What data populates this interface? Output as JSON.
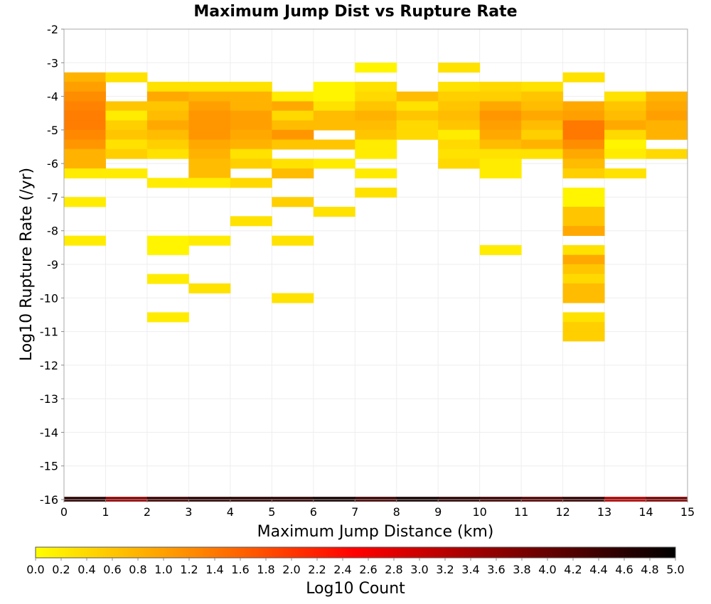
{
  "chart_data": {
    "type": "heatmap",
    "title": "Maximum Jump Dist vs Rupture Rate",
    "xlabel": "Maximum Jump Distance (km)",
    "ylabel": "Log10 Rupture Rate (/yr)",
    "xlim": [
      0,
      15
    ],
    "ylim": [
      -16,
      -2
    ],
    "x_ticks": [
      "0",
      "1",
      "2",
      "3",
      "4",
      "5",
      "6",
      "7",
      "8",
      "9",
      "10",
      "11",
      "12",
      "13",
      "14",
      "15"
    ],
    "y_ticks": [
      "-2",
      "-3",
      "-4",
      "-5",
      "-6",
      "-7",
      "-8",
      "-9",
      "-10",
      "-11",
      "-12",
      "-13",
      "-14",
      "-15",
      "-16"
    ],
    "bin_width_x": 1,
    "bin_height_y": 0.286,
    "colorbar": {
      "label": "Log10 Count",
      "min": 0.0,
      "max": 5.0,
      "ticks": [
        "0.0",
        "0.2",
        "0.4",
        "0.6",
        "0.8",
        "1.0",
        "1.2",
        "1.4",
        "1.6",
        "1.8",
        "2.0",
        "2.2",
        "2.4",
        "2.6",
        "2.8",
        "3.0",
        "3.2",
        "3.4",
        "3.6",
        "3.8",
        "4.0",
        "4.2",
        "4.4",
        "4.6",
        "4.8",
        "5.0"
      ],
      "stops": [
        "#ffff00",
        "#ff8800",
        "#ff0000",
        "#800000",
        "#000000"
      ]
    },
    "columns": [
      {
        "x": 0,
        "bins": [
          {
            "y": -3.43,
            "v": 0.8
          },
          {
            "y": -3.71,
            "v": 1.0
          },
          {
            "y": -4.0,
            "v": 1.2
          },
          {
            "y": -4.29,
            "v": 1.3
          },
          {
            "y": -4.57,
            "v": 1.35
          },
          {
            "y": -4.86,
            "v": 1.35
          },
          {
            "y": -5.14,
            "v": 1.25
          },
          {
            "y": -5.43,
            "v": 1.1
          },
          {
            "y": -5.71,
            "v": 0.8
          },
          {
            "y": -6.0,
            "v": 0.8
          },
          {
            "y": -6.29,
            "v": 0.2
          },
          {
            "y": -7.14,
            "v": 0.2
          },
          {
            "y": -8.29,
            "v": 0.2
          }
        ]
      },
      {
        "x": 1,
        "bins": [
          {
            "y": -3.43,
            "v": 0.3
          },
          {
            "y": -4.29,
            "v": 0.6
          },
          {
            "y": -4.57,
            "v": 0.2
          },
          {
            "y": -4.86,
            "v": 0.5
          },
          {
            "y": -5.14,
            "v": 0.6
          },
          {
            "y": -5.43,
            "v": 0.3
          },
          {
            "y": -5.71,
            "v": 0.5
          },
          {
            "y": -6.29,
            "v": 0.2
          }
        ]
      },
      {
        "x": 2,
        "bins": [
          {
            "y": -3.71,
            "v": 0.3
          },
          {
            "y": -4.0,
            "v": 0.9
          },
          {
            "y": -4.29,
            "v": 0.6
          },
          {
            "y": -4.57,
            "v": 0.7
          },
          {
            "y": -4.86,
            "v": 0.9
          },
          {
            "y": -5.14,
            "v": 0.7
          },
          {
            "y": -5.43,
            "v": 0.5
          },
          {
            "y": -5.71,
            "v": 0.3
          },
          {
            "y": -6.57,
            "v": 0.2
          },
          {
            "y": -8.29,
            "v": 0.1
          },
          {
            "y": -8.57,
            "v": 0.1
          },
          {
            "y": -9.43,
            "v": 0.2
          },
          {
            "y": -10.57,
            "v": 0.2
          }
        ]
      },
      {
        "x": 3,
        "bins": [
          {
            "y": -3.71,
            "v": 0.3
          },
          {
            "y": -4.0,
            "v": 0.8
          },
          {
            "y": -4.29,
            "v": 1.0
          },
          {
            "y": -4.57,
            "v": 1.1
          },
          {
            "y": -4.86,
            "v": 1.1
          },
          {
            "y": -5.14,
            "v": 1.1
          },
          {
            "y": -5.43,
            "v": 0.9
          },
          {
            "y": -5.71,
            "v": 0.8
          },
          {
            "y": -6.0,
            "v": 0.7
          },
          {
            "y": -6.29,
            "v": 0.7
          },
          {
            "y": -6.57,
            "v": 0.2
          },
          {
            "y": -8.29,
            "v": 0.2
          },
          {
            "y": -9.71,
            "v": 0.3
          }
        ]
      },
      {
        "x": 4,
        "bins": [
          {
            "y": -3.71,
            "v": 0.3
          },
          {
            "y": -4.0,
            "v": 0.8
          },
          {
            "y": -4.29,
            "v": 0.8
          },
          {
            "y": -4.57,
            "v": 1.0
          },
          {
            "y": -4.86,
            "v": 1.0
          },
          {
            "y": -5.14,
            "v": 0.9
          },
          {
            "y": -5.43,
            "v": 0.8
          },
          {
            "y": -5.71,
            "v": 0.3
          },
          {
            "y": -6.0,
            "v": 0.5
          },
          {
            "y": -6.57,
            "v": 0.4
          },
          {
            "y": -7.71,
            "v": 0.3
          }
        ]
      },
      {
        "x": 5,
        "bins": [
          {
            "y": -4.0,
            "v": 0.2
          },
          {
            "y": -4.29,
            "v": 0.9
          },
          {
            "y": -4.57,
            "v": 0.4
          },
          {
            "y": -4.86,
            "v": 0.7
          },
          {
            "y": -5.14,
            "v": 1.1
          },
          {
            "y": -5.43,
            "v": 0.6
          },
          {
            "y": -6.0,
            "v": 0.3
          },
          {
            "y": -6.29,
            "v": 0.7
          },
          {
            "y": -7.14,
            "v": 0.5
          },
          {
            "y": -8.29,
            "v": 0.3
          },
          {
            "y": -10.0,
            "v": 0.3
          }
        ]
      },
      {
        "x": 6,
        "bins": [
          {
            "y": -3.71,
            "v": 0.1
          },
          {
            "y": -4.0,
            "v": 0.1
          },
          {
            "y": -4.29,
            "v": 0.3
          },
          {
            "y": -4.57,
            "v": 0.7
          },
          {
            "y": -4.86,
            "v": 0.7
          },
          {
            "y": -5.43,
            "v": 0.6
          },
          {
            "y": -6.0,
            "v": 0.2
          },
          {
            "y": -7.43,
            "v": 0.3
          }
        ]
      },
      {
        "x": 7,
        "bins": [
          {
            "y": -3.14,
            "v": 0.1
          },
          {
            "y": -3.71,
            "v": 0.3
          },
          {
            "y": -4.0,
            "v": 0.4
          },
          {
            "y": -4.29,
            "v": 0.6
          },
          {
            "y": -4.57,
            "v": 0.8
          },
          {
            "y": -4.86,
            "v": 0.7
          },
          {
            "y": -5.14,
            "v": 0.6
          },
          {
            "y": -5.43,
            "v": 0.2
          },
          {
            "y": -5.71,
            "v": 0.2
          },
          {
            "y": -6.29,
            "v": 0.2
          },
          {
            "y": -6.86,
            "v": 0.3
          }
        ]
      },
      {
        "x": 8,
        "bins": [
          {
            "y": -4.0,
            "v": 0.7
          },
          {
            "y": -4.29,
            "v": 0.3
          },
          {
            "y": -4.57,
            "v": 0.6
          },
          {
            "y": -4.86,
            "v": 0.4
          },
          {
            "y": -5.14,
            "v": 0.4
          }
        ]
      },
      {
        "x": 9,
        "bins": [
          {
            "y": -3.14,
            "v": 0.3
          },
          {
            "y": -3.71,
            "v": 0.3
          },
          {
            "y": -4.0,
            "v": 0.5
          },
          {
            "y": -4.29,
            "v": 0.6
          },
          {
            "y": -4.57,
            "v": 0.7
          },
          {
            "y": -4.86,
            "v": 0.6
          },
          {
            "y": -5.14,
            "v": 0.2
          },
          {
            "y": -5.43,
            "v": 0.4
          },
          {
            "y": -5.71,
            "v": 0.3
          },
          {
            "y": -6.0,
            "v": 0.4
          }
        ]
      },
      {
        "x": 10,
        "bins": [
          {
            "y": -3.71,
            "v": 0.4
          },
          {
            "y": -4.0,
            "v": 0.5
          },
          {
            "y": -4.29,
            "v": 0.9
          },
          {
            "y": -4.57,
            "v": 1.1
          },
          {
            "y": -4.86,
            "v": 1.0
          },
          {
            "y": -5.14,
            "v": 0.9
          },
          {
            "y": -5.43,
            "v": 0.7
          },
          {
            "y": -5.71,
            "v": 0.3
          },
          {
            "y": -6.0,
            "v": 0.2
          },
          {
            "y": -6.29,
            "v": 0.2
          },
          {
            "y": -8.57,
            "v": 0.2
          }
        ]
      },
      {
        "x": 11,
        "bins": [
          {
            "y": -3.71,
            "v": 0.3
          },
          {
            "y": -4.0,
            "v": 0.6
          },
          {
            "y": -4.29,
            "v": 0.7
          },
          {
            "y": -4.57,
            "v": 0.9
          },
          {
            "y": -4.86,
            "v": 0.7
          },
          {
            "y": -5.14,
            "v": 0.5
          },
          {
            "y": -5.43,
            "v": 0.8
          },
          {
            "y": -5.71,
            "v": 0.3
          }
        ]
      },
      {
        "x": 12,
        "bins": [
          {
            "y": -3.43,
            "v": 0.3
          },
          {
            "y": -4.29,
            "v": 0.9
          },
          {
            "y": -4.57,
            "v": 1.0
          },
          {
            "y": -4.86,
            "v": 1.4
          },
          {
            "y": -5.14,
            "v": 1.4
          },
          {
            "y": -5.43,
            "v": 1.2
          },
          {
            "y": -5.71,
            "v": 0.9
          },
          {
            "y": -6.0,
            "v": 0.7
          },
          {
            "y": -6.29,
            "v": 0.5
          },
          {
            "y": -6.86,
            "v": 0.1
          },
          {
            "y": -7.14,
            "v": 0.1
          },
          {
            "y": -7.43,
            "v": 0.6
          },
          {
            "y": -7.71,
            "v": 0.6
          },
          {
            "y": -8.0,
            "v": 0.9
          },
          {
            "y": -8.57,
            "v": 0.3
          },
          {
            "y": -8.86,
            "v": 0.9
          },
          {
            "y": -9.14,
            "v": 0.6
          },
          {
            "y": -9.43,
            "v": 0.4
          },
          {
            "y": -9.71,
            "v": 0.7
          },
          {
            "y": -10.0,
            "v": 0.7
          },
          {
            "y": -10.57,
            "v": 0.3
          },
          {
            "y": -10.86,
            "v": 0.5
          },
          {
            "y": -11.14,
            "v": 0.5
          }
        ]
      },
      {
        "x": 13,
        "bins": [
          {
            "y": -4.0,
            "v": 0.3
          },
          {
            "y": -4.29,
            "v": 0.6
          },
          {
            "y": -4.57,
            "v": 0.7
          },
          {
            "y": -4.86,
            "v": 0.9
          },
          {
            "y": -5.14,
            "v": 0.4
          },
          {
            "y": -5.43,
            "v": 0.1
          },
          {
            "y": -5.71,
            "v": 0.2
          },
          {
            "y": -6.29,
            "v": 0.3
          }
        ]
      },
      {
        "x": 14,
        "bins": [
          {
            "y": -4.0,
            "v": 0.8
          },
          {
            "y": -4.29,
            "v": 0.9
          },
          {
            "y": -4.57,
            "v": 1.0
          },
          {
            "y": -4.86,
            "v": 0.8
          },
          {
            "y": -5.14,
            "v": 0.8
          },
          {
            "y": -5.71,
            "v": 0.4
          }
        ]
      }
    ],
    "bottom_row": {
      "y": -16,
      "values": [
        4.6,
        3.6,
        4.4,
        4.6,
        4.6,
        4.6,
        4.8,
        4.4,
        4.8,
        4.6,
        4.4,
        4.2,
        4.5,
        3.3,
        3.8
      ]
    }
  }
}
